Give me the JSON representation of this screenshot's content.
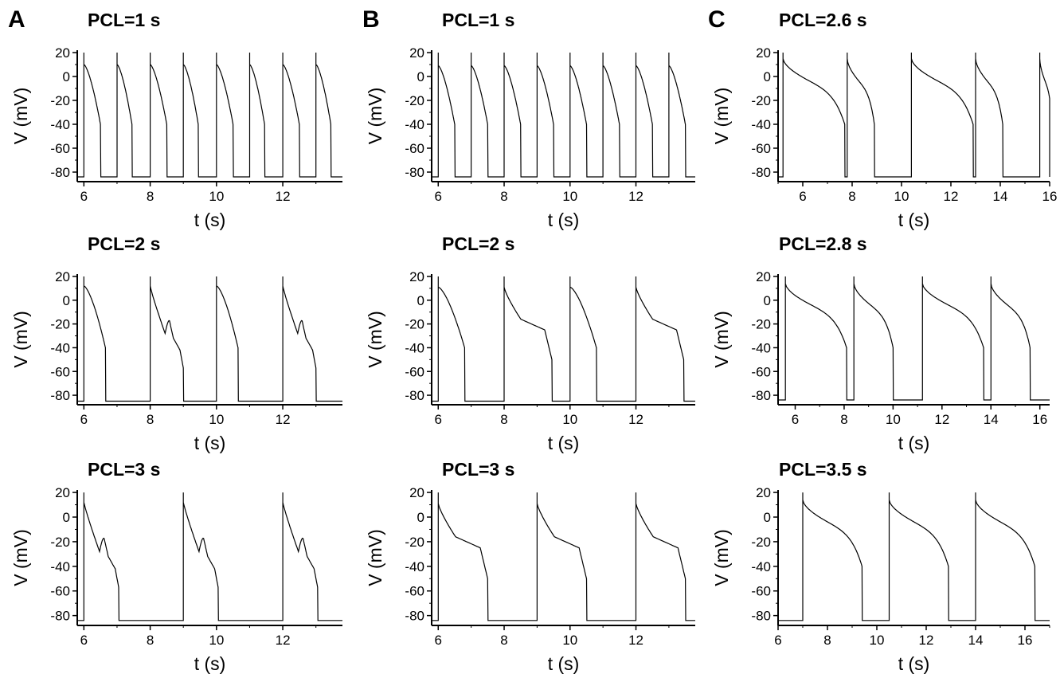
{
  "panels": [
    {
      "letter": "A"
    },
    {
      "letter": "B"
    },
    {
      "letter": "C"
    }
  ],
  "chart_data": [
    {
      "type": "line",
      "panel": "A",
      "row": 1,
      "title": "PCL=1 s",
      "xlabel": "t (s)",
      "ylabel": "V (mV)",
      "xlim": [
        5.8,
        13.8
      ],
      "ylim": [
        -88,
        22
      ],
      "xticks": [
        "6",
        "8",
        "10",
        "12"
      ],
      "yticks": [
        "20",
        "0",
        "-20",
        "-40",
        "-60",
        "-80"
      ],
      "stimuli": [
        6,
        7,
        8,
        9,
        10,
        11,
        12,
        13
      ],
      "apd": [
        0.5,
        0.45,
        0.5,
        0.45,
        0.5,
        0.45,
        0.5,
        0.45
      ],
      "pattern": "normal",
      "peak": 10,
      "rest": -84
    },
    {
      "type": "line",
      "panel": "B",
      "row": 1,
      "title": "PCL=1 s",
      "xlabel": "t (s)",
      "ylabel": "V (mV)",
      "xlim": [
        5.8,
        13.8
      ],
      "ylim": [
        -88,
        22
      ],
      "xticks": [
        "6",
        "8",
        "10",
        "12"
      ],
      "yticks": [
        "20",
        "0",
        "-20",
        "-40",
        "-60",
        "-80"
      ],
      "stimuli": [
        6,
        7,
        8,
        9,
        10,
        11,
        12,
        13
      ],
      "apd": [
        0.5,
        0.5,
        0.5,
        0.5,
        0.5,
        0.5,
        0.5,
        0.5
      ],
      "pattern": "normal",
      "peak": 9,
      "rest": -84
    },
    {
      "type": "line",
      "panel": "C",
      "row": 1,
      "title": "PCL=2.6 s",
      "xlabel": "t (s)",
      "ylabel": "V (mV)",
      "xlim": [
        5,
        16
      ],
      "ylim": [
        -88,
        22
      ],
      "xticks": [
        "6",
        "8",
        "10",
        "12",
        "14",
        "16"
      ],
      "yticks": [
        "20",
        "0",
        "-20",
        "-40",
        "-60",
        "-80"
      ],
      "stimuli": [
        5.2,
        7.8,
        10.4,
        13.0,
        15.6
      ],
      "apd": [
        2.5,
        1.1,
        2.5,
        1.1,
        0.5
      ],
      "pattern": "long",
      "peak": 15,
      "rest": -84
    },
    {
      "type": "line",
      "panel": "A",
      "row": 2,
      "title": "PCL=2 s",
      "xlabel": "t (s)",
      "ylabel": "V (mV)",
      "xlim": [
        5.8,
        13.8
      ],
      "ylim": [
        -88,
        22
      ],
      "xticks": [
        "6",
        "8",
        "10",
        "12"
      ],
      "yticks": [
        "20",
        "0",
        "-20",
        "-40",
        "-60",
        "-80"
      ],
      "stimuli": [
        6,
        8,
        10,
        12
      ],
      "apd": [
        0.65,
        1.0,
        0.65,
        1.0
      ],
      "patterns": [
        "normal",
        "ead",
        "normal",
        "ead"
      ],
      "peak": 12,
      "rest": -85
    },
    {
      "type": "line",
      "panel": "B",
      "row": 2,
      "title": "PCL=2 s",
      "xlabel": "t (s)",
      "ylabel": "V (mV)",
      "xlim": [
        5.8,
        13.8
      ],
      "ylim": [
        -88,
        22
      ],
      "xticks": [
        "6",
        "8",
        "10",
        "12"
      ],
      "yticks": [
        "20",
        "0",
        "-20",
        "-40",
        "-60",
        "-80"
      ],
      "stimuli": [
        6,
        8,
        10,
        12
      ],
      "apd": [
        0.8,
        1.45,
        0.8,
        1.45
      ],
      "patterns": [
        "normal",
        "plateau",
        "normal",
        "plateau"
      ],
      "peak": 11,
      "rest": -85
    },
    {
      "type": "line",
      "panel": "C",
      "row": 2,
      "title": "PCL=2.8 s",
      "xlabel": "t (s)",
      "ylabel": "V (mV)",
      "xlim": [
        5.3,
        16.4
      ],
      "ylim": [
        -88,
        22
      ],
      "xticks": [
        "6",
        "8",
        "10",
        "12",
        "14",
        "16"
      ],
      "yticks": [
        "20",
        "0",
        "-20",
        "-40",
        "-60",
        "-80"
      ],
      "stimuli": [
        5.6,
        8.4,
        11.2,
        14.0
      ],
      "apd": [
        2.5,
        1.6,
        2.5,
        1.6
      ],
      "pattern": "long",
      "peak": 14,
      "rest": -84
    },
    {
      "type": "line",
      "panel": "A",
      "row": 3,
      "title": "PCL=3 s",
      "xlabel": "t (s)",
      "ylabel": "V (mV)",
      "xlim": [
        5.8,
        13.8
      ],
      "ylim": [
        -88,
        22
      ],
      "xticks": [
        "6",
        "8",
        "10",
        "12"
      ],
      "yticks": [
        "20",
        "0",
        "-20",
        "-40",
        "-60",
        "-80"
      ],
      "stimuli": [
        6,
        9,
        12
      ],
      "apd": [
        1.05,
        1.05,
        1.05
      ],
      "patterns": [
        "ead",
        "ead",
        "ead"
      ],
      "peak": 12,
      "rest": -84
    },
    {
      "type": "line",
      "panel": "B",
      "row": 3,
      "title": "PCL=3 s",
      "xlabel": "t (s)",
      "ylabel": "V (mV)",
      "xlim": [
        5.8,
        13.8
      ],
      "ylim": [
        -88,
        22
      ],
      "xticks": [
        "6",
        "8",
        "10",
        "12"
      ],
      "yticks": [
        "20",
        "0",
        "-20",
        "-40",
        "-60",
        "-80"
      ],
      "stimuli": [
        6,
        9,
        12
      ],
      "apd": [
        1.5,
        1.5,
        1.5
      ],
      "patterns": [
        "plateau",
        "plateau",
        "plateau"
      ],
      "peak": 11,
      "rest": -84
    },
    {
      "type": "line",
      "panel": "C",
      "row": 3,
      "title": "PCL=3.5 s",
      "xlabel": "t (s)",
      "ylabel": "V (mV)",
      "xlim": [
        6,
        17
      ],
      "ylim": [
        -88,
        22
      ],
      "xticks": [
        "6",
        "8",
        "10",
        "12",
        "14",
        "16"
      ],
      "yticks": [
        "20",
        "0",
        "-20",
        "-40",
        "-60",
        "-80"
      ],
      "stimuli": [
        7.0,
        10.5,
        14.0
      ],
      "apd": [
        2.4,
        2.4,
        2.4
      ],
      "pattern": "long",
      "peak": 14,
      "rest": -84
    }
  ]
}
